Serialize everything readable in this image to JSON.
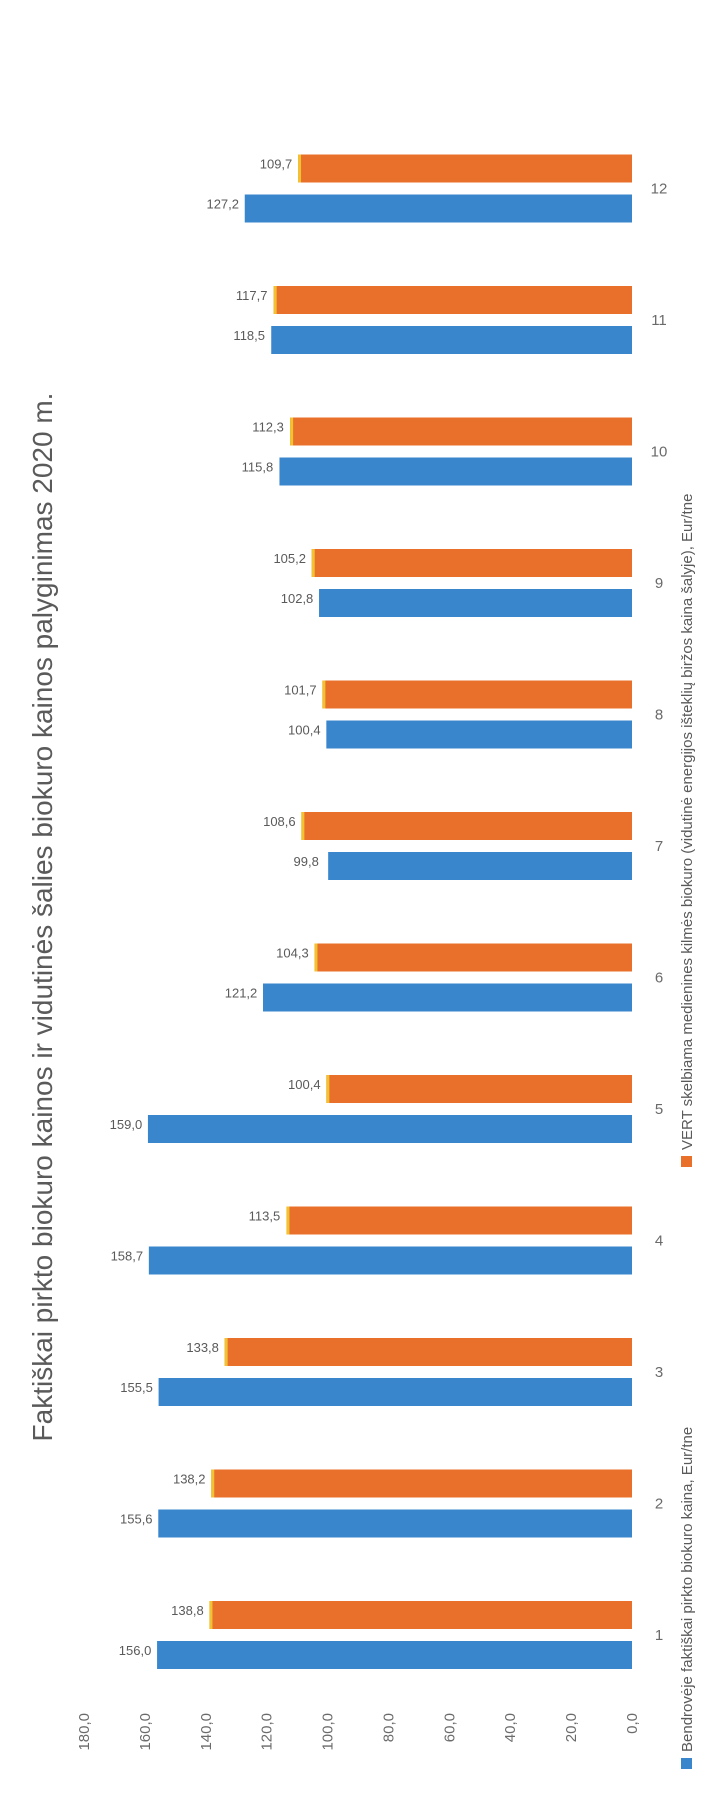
{
  "chart_data": {
    "type": "bar",
    "title": "Faktiškai pirkto biokuro  kainos ir vidutinės šalies biokuro kainos palyginimas 2020 m.",
    "categories": [
      "1",
      "2",
      "3",
      "4",
      "5",
      "6",
      "7",
      "8",
      "9",
      "10",
      "11",
      "12"
    ],
    "series": [
      {
        "name": "Bendrovėje faktiškai pirkto biokuro kaina, Eur/tne",
        "color": "#3a86cc",
        "values": [
          156.0,
          155.6,
          155.5,
          158.7,
          159.0,
          121.2,
          99.8,
          100.4,
          102.8,
          115.8,
          118.5,
          127.2
        ],
        "labels": [
          "156,0",
          "155,6",
          "155,5",
          "158,7",
          "159,0",
          "121,2",
          "99,8",
          "100,4",
          "102,8",
          "115,8",
          "118,5",
          "127,2"
        ]
      },
      {
        "name": "VERT skelbiama medienines kilmės biokuro (vidutinė energijos išteklių biržos kaina šalyje), Eur/tne",
        "color": "#e9702a",
        "values": [
          138.8,
          138.2,
          133.8,
          113.5,
          100.4,
          104.3,
          108.6,
          101.7,
          105.2,
          112.3,
          117.7,
          109.7
        ],
        "labels": [
          "138,8",
          "138,2",
          "133,8",
          "113,5",
          "100,4",
          "104,3",
          "108,6",
          "101,7",
          "105,2",
          "112,3",
          "117,7",
          "109,7"
        ]
      }
    ],
    "ylim": [
      0,
      180
    ],
    "yticks": [
      "0,0",
      "20,0",
      "40,0",
      "60,0",
      "80,0",
      "100,0",
      "120,0",
      "140,0",
      "160,0",
      "180,0"
    ],
    "grid": false,
    "legend_position": "bottom",
    "orientation": "rotated 90° counter-clockwise"
  }
}
